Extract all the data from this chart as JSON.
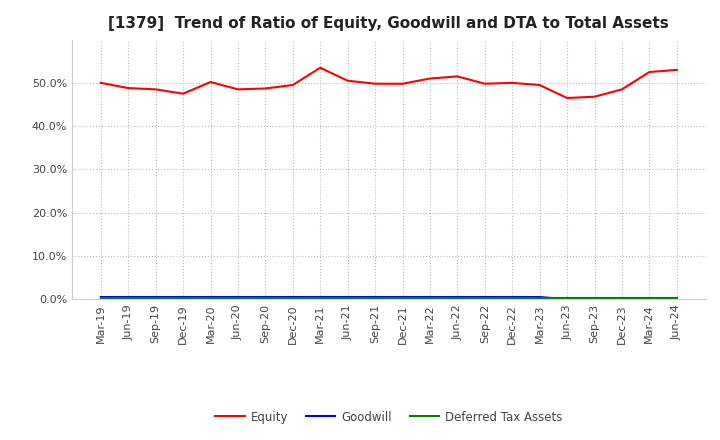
{
  "title": "[1379]  Trend of Ratio of Equity, Goodwill and DTA to Total Assets",
  "x_labels": [
    "Mar-19",
    "Jun-19",
    "Sep-19",
    "Dec-19",
    "Mar-20",
    "Jun-20",
    "Sep-20",
    "Dec-20",
    "Mar-21",
    "Jun-21",
    "Sep-21",
    "Dec-21",
    "Mar-22",
    "Jun-22",
    "Sep-22",
    "Dec-22",
    "Mar-23",
    "Jun-23",
    "Sep-23",
    "Dec-23",
    "Mar-24",
    "Jun-24"
  ],
  "equity": [
    50.0,
    48.8,
    48.5,
    47.5,
    50.2,
    48.5,
    48.7,
    49.5,
    53.5,
    50.5,
    49.8,
    49.8,
    51.0,
    51.5,
    49.8,
    50.0,
    49.5,
    46.5,
    46.8,
    48.5,
    52.5,
    53.0
  ],
  "goodwill": [
    0.5,
    0.5,
    0.5,
    0.5,
    0.5,
    0.5,
    0.5,
    0.5,
    0.5,
    0.5,
    0.5,
    0.5,
    0.5,
    0.5,
    0.5,
    0.5,
    0.5,
    0.0,
    0.0,
    0.0,
    0.0,
    0.0
  ],
  "dta": [
    0.3,
    0.3,
    0.3,
    0.3,
    0.3,
    0.3,
    0.3,
    0.3,
    0.3,
    0.3,
    0.3,
    0.3,
    0.3,
    0.3,
    0.3,
    0.3,
    0.3,
    0.3,
    0.3,
    0.3,
    0.3,
    0.3
  ],
  "equity_color": "#ff0000",
  "goodwill_color": "#0000ff",
  "dta_color": "#008000",
  "ylim": [
    0,
    60
  ],
  "yticks": [
    0.0,
    10.0,
    20.0,
    30.0,
    40.0,
    50.0
  ],
  "background_color": "#ffffff",
  "grid_color": "#bbbbbb",
  "title_fontsize": 11,
  "tick_fontsize": 8,
  "legend_labels": [
    "Equity",
    "Goodwill",
    "Deferred Tax Assets"
  ]
}
